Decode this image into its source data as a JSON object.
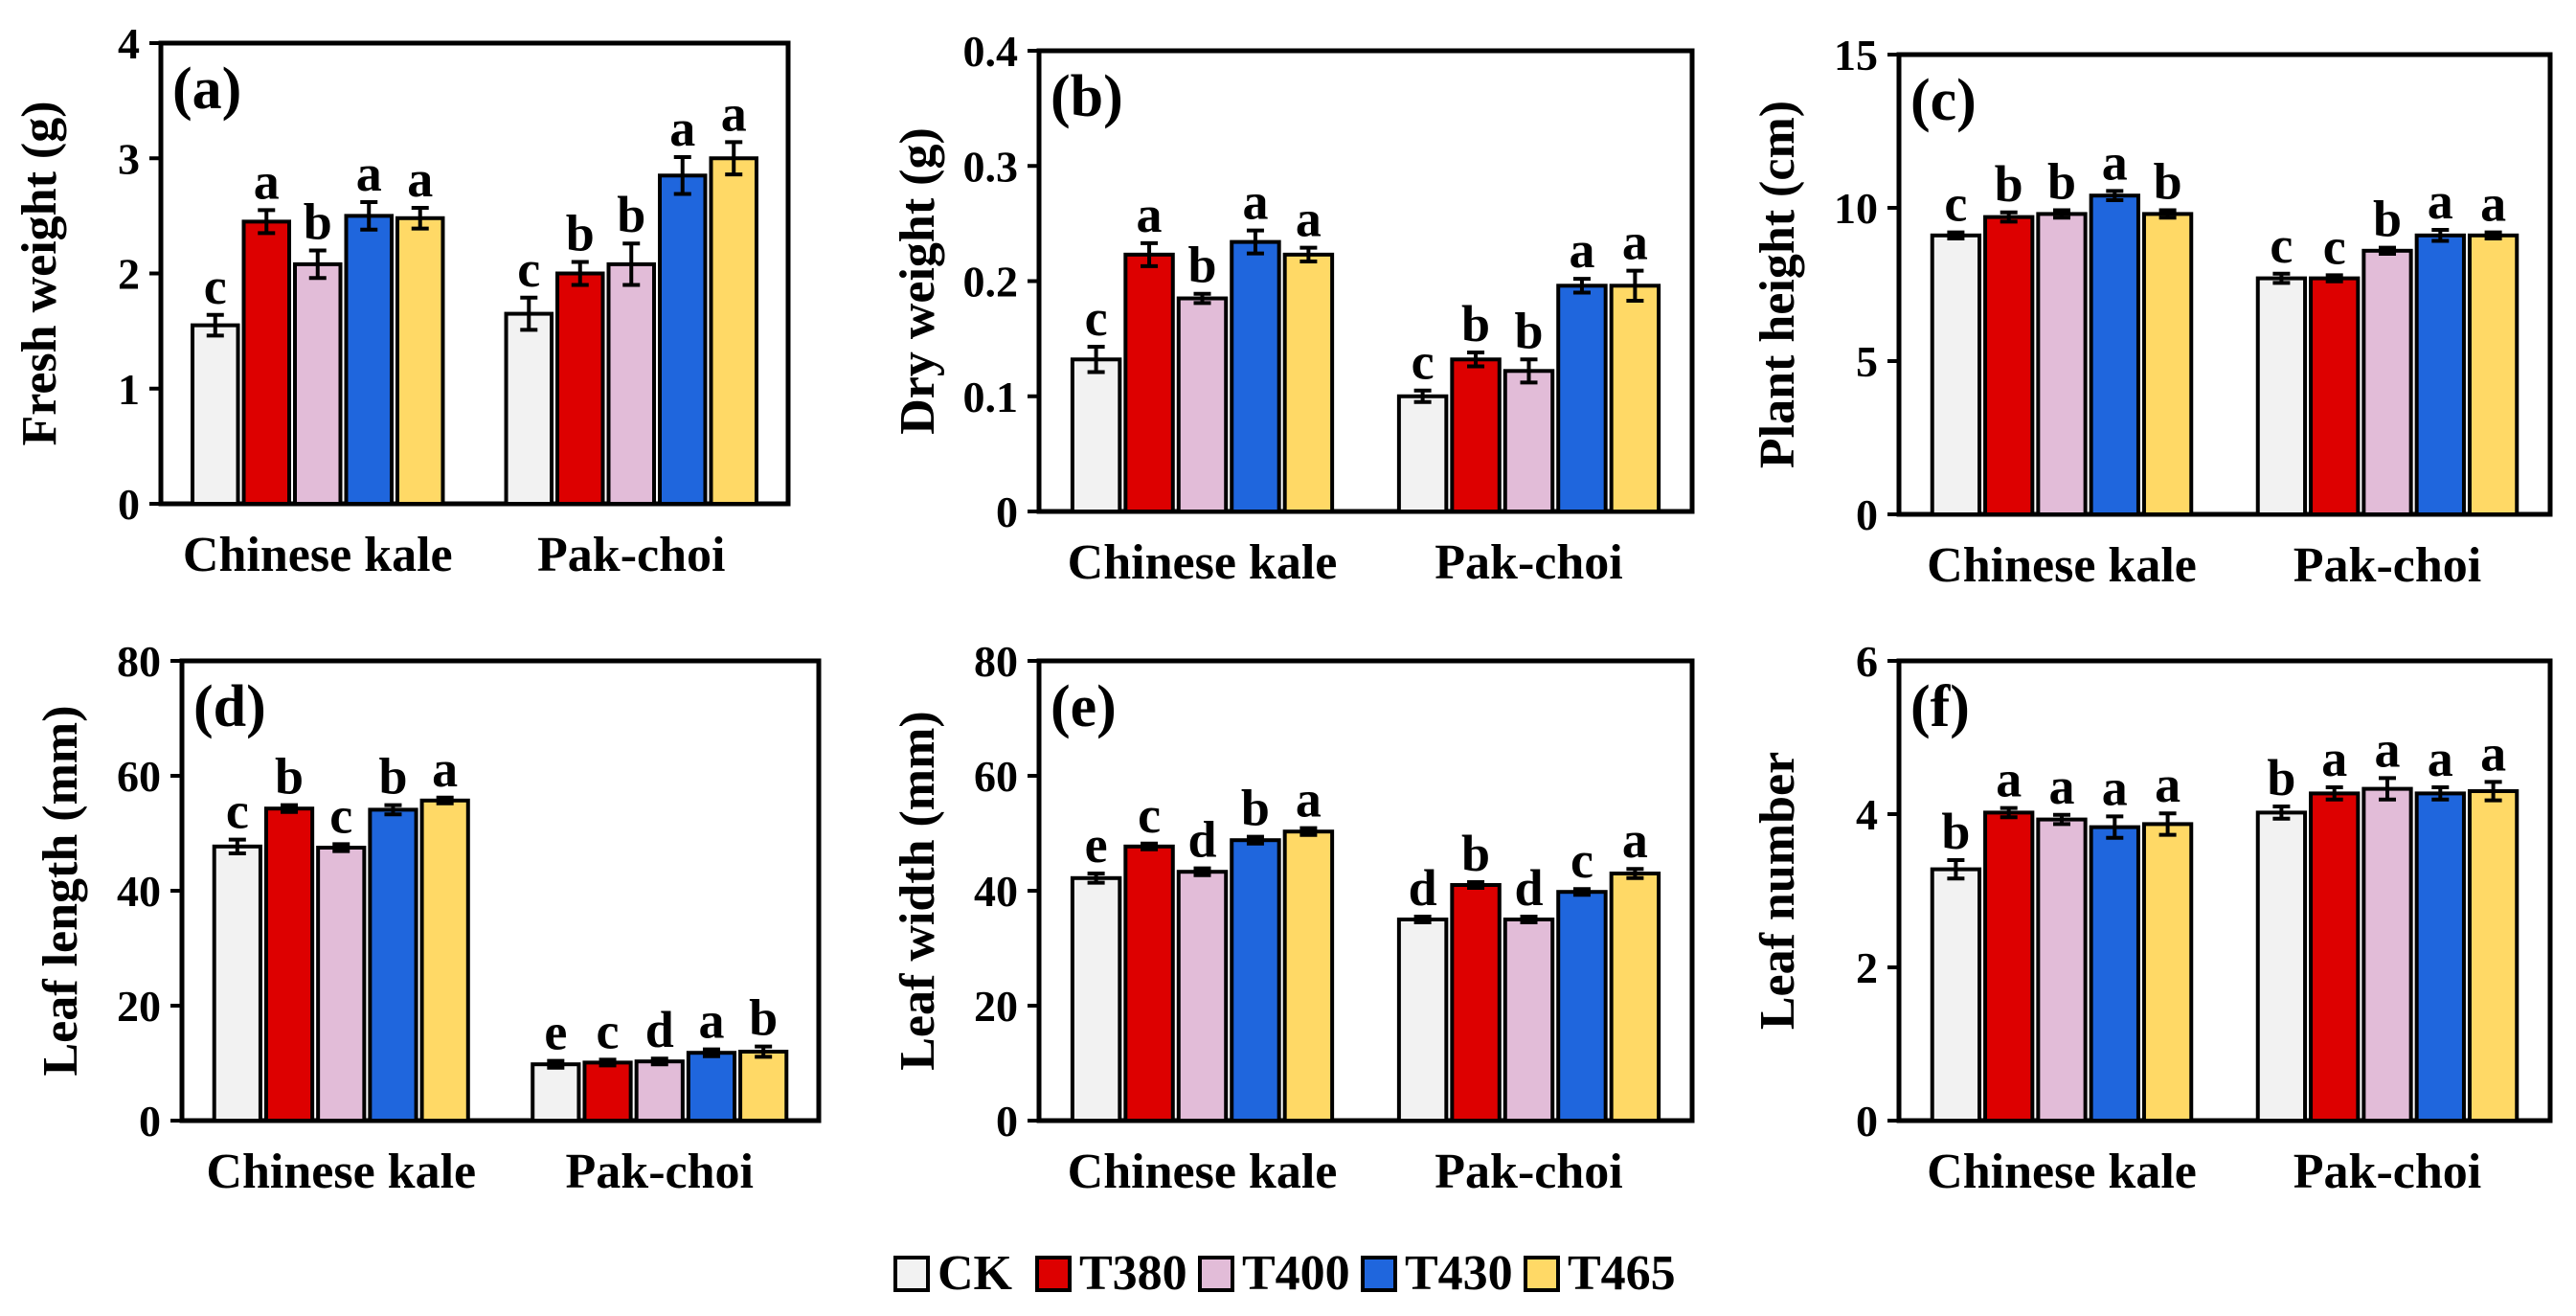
{
  "legend": [
    {
      "name": "CK",
      "color": "#f2f2f2"
    },
    {
      "name": "T380",
      "color": "#dd0000"
    },
    {
      "name": "T400",
      "color": "#e2bcd8"
    },
    {
      "name": "T430",
      "color": "#1f66dd"
    },
    {
      "name": "T465",
      "color": "#ffd966"
    }
  ],
  "chart_data": [
    {
      "type": "bar",
      "panel": "(a)",
      "ylabel": "Fresh weight (g)",
      "ylim": [
        0,
        4
      ],
      "yticks": [
        "0",
        "1",
        "2",
        "3",
        "4"
      ],
      "categories": [
        "Chinese kale",
        "Pak-choi"
      ],
      "series": [
        {
          "name": "CK",
          "values": [
            1.55,
            1.65
          ],
          "errors": [
            0.09,
            0.14
          ],
          "letters": [
            "c",
            "c"
          ]
        },
        {
          "name": "T380",
          "values": [
            2.45,
            2.0
          ],
          "errors": [
            0.1,
            0.1
          ],
          "letters": [
            "a",
            "b"
          ]
        },
        {
          "name": "T400",
          "values": [
            2.08,
            2.08
          ],
          "errors": [
            0.12,
            0.18
          ],
          "letters": [
            "b",
            "b"
          ]
        },
        {
          "name": "T430",
          "values": [
            2.5,
            2.85
          ],
          "errors": [
            0.12,
            0.16
          ],
          "letters": [
            "a",
            "a"
          ]
        },
        {
          "name": "T465",
          "values": [
            2.48,
            3.0
          ],
          "errors": [
            0.09,
            0.14
          ],
          "letters": [
            "a",
            "a"
          ]
        }
      ]
    },
    {
      "type": "bar",
      "panel": "(b)",
      "ylabel": "Dry weight (g)",
      "ylim": [
        0,
        0.4
      ],
      "yticks": [
        "0",
        "0.1",
        "0.2",
        "0.3",
        "0.4"
      ],
      "categories": [
        "Chinese kale",
        "Pak-choi"
      ],
      "series": [
        {
          "name": "CK",
          "values": [
            0.132,
            0.1
          ],
          "errors": [
            0.011,
            0.005
          ],
          "letters": [
            "c",
            "c"
          ]
        },
        {
          "name": "T380",
          "values": [
            0.223,
            0.132
          ],
          "errors": [
            0.01,
            0.006
          ],
          "letters": [
            "a",
            "b"
          ]
        },
        {
          "name": "T400",
          "values": [
            0.185,
            0.122
          ],
          "errors": [
            0.004,
            0.01
          ],
          "letters": [
            "b",
            "b"
          ]
        },
        {
          "name": "T430",
          "values": [
            0.234,
            0.196
          ],
          "errors": [
            0.01,
            0.006
          ],
          "letters": [
            "a",
            "a"
          ]
        },
        {
          "name": "T465",
          "values": [
            0.223,
            0.196
          ],
          "errors": [
            0.006,
            0.013
          ],
          "letters": [
            "a",
            "a"
          ]
        }
      ]
    },
    {
      "type": "bar",
      "panel": "(c)",
      "ylabel": "Plant height (cm)",
      "ylim": [
        0,
        15
      ],
      "yticks": [
        "0",
        "5",
        "10",
        "15"
      ],
      "categories": [
        "Chinese kale",
        "Pak-choi"
      ],
      "series": [
        {
          "name": "CK",
          "values": [
            9.1,
            7.7
          ],
          "errors": [
            0.1,
            0.15
          ],
          "letters": [
            "c",
            "c"
          ]
        },
        {
          "name": "T380",
          "values": [
            9.7,
            7.7
          ],
          "errors": [
            0.15,
            0.1
          ],
          "letters": [
            "b",
            "c"
          ]
        },
        {
          "name": "T400",
          "values": [
            9.8,
            8.6
          ],
          "errors": [
            0.12,
            0.1
          ],
          "letters": [
            "b",
            "b"
          ]
        },
        {
          "name": "T430",
          "values": [
            10.4,
            9.1
          ],
          "errors": [
            0.15,
            0.18
          ],
          "letters": [
            "a",
            "a"
          ]
        },
        {
          "name": "T465",
          "values": [
            9.8,
            9.1
          ],
          "errors": [
            0.12,
            0.1
          ],
          "letters": [
            "b",
            "a"
          ]
        }
      ]
    },
    {
      "type": "bar",
      "panel": "(d)",
      "ylabel": "Leaf length (mm)",
      "ylim": [
        0,
        80
      ],
      "yticks": [
        "0",
        "20",
        "40",
        "60",
        "80"
      ],
      "categories": [
        "Chinese kale",
        "Pak-choi"
      ],
      "series": [
        {
          "name": "CK",
          "values": [
            47.7,
            9.8
          ],
          "errors": [
            1.2,
            0.6
          ],
          "letters": [
            "c",
            "e"
          ]
        },
        {
          "name": "T380",
          "values": [
            54.3,
            10.1
          ],
          "errors": [
            0.6,
            0.5
          ],
          "letters": [
            "b",
            "c"
          ]
        },
        {
          "name": "T400",
          "values": [
            47.5,
            10.3
          ],
          "errors": [
            0.6,
            0.5
          ],
          "letters": [
            "c",
            "d"
          ]
        },
        {
          "name": "T430",
          "values": [
            54.1,
            11.8
          ],
          "errors": [
            0.8,
            0.6
          ],
          "letters": [
            "b",
            "a"
          ]
        },
        {
          "name": "T465",
          "values": [
            55.7,
            12.0
          ],
          "errors": [
            0.5,
            0.9
          ],
          "letters": [
            "a",
            "b"
          ]
        }
      ]
    },
    {
      "type": "bar",
      "panel": "(e)",
      "ylabel": "Leaf width (mm)",
      "ylim": [
        0,
        80
      ],
      "yticks": [
        "0",
        "20",
        "40",
        "60",
        "80"
      ],
      "categories": [
        "Chinese kale",
        "Pak-choi"
      ],
      "series": [
        {
          "name": "CK",
          "values": [
            42.2,
            35.0
          ],
          "errors": [
            0.8,
            0.5
          ],
          "letters": [
            "e",
            "d"
          ]
        },
        {
          "name": "T380",
          "values": [
            47.7,
            41.0
          ],
          "errors": [
            0.5,
            0.5
          ],
          "letters": [
            "c",
            "b"
          ]
        },
        {
          "name": "T400",
          "values": [
            43.3,
            35.0
          ],
          "errors": [
            0.6,
            0.5
          ],
          "letters": [
            "d",
            "d"
          ]
        },
        {
          "name": "T430",
          "values": [
            48.8,
            39.8
          ],
          "errors": [
            0.6,
            0.5
          ],
          "letters": [
            "b",
            "c"
          ]
        },
        {
          "name": "T465",
          "values": [
            50.3,
            43.0
          ],
          "errors": [
            0.6,
            0.8
          ],
          "letters": [
            "a",
            "a"
          ]
        }
      ]
    },
    {
      "type": "bar",
      "panel": "(f)",
      "ylabel": "Leaf number",
      "ylim": [
        0,
        6
      ],
      "yticks": [
        "0",
        "2",
        "4",
        "6"
      ],
      "categories": [
        "Chinese kale",
        "Pak-choi"
      ],
      "series": [
        {
          "name": "CK",
          "values": [
            3.28,
            4.02
          ],
          "errors": [
            0.12,
            0.08
          ],
          "letters": [
            "b",
            "b"
          ]
        },
        {
          "name": "T380",
          "values": [
            4.02,
            4.27
          ],
          "errors": [
            0.06,
            0.08
          ],
          "letters": [
            "a",
            "a"
          ]
        },
        {
          "name": "T400",
          "values": [
            3.93,
            4.33
          ],
          "errors": [
            0.06,
            0.14
          ],
          "letters": [
            "a",
            "a"
          ]
        },
        {
          "name": "T430",
          "values": [
            3.83,
            4.27
          ],
          "errors": [
            0.14,
            0.08
          ],
          "letters": [
            "a",
            "a"
          ]
        },
        {
          "name": "T465",
          "values": [
            3.87,
            4.3
          ],
          "errors": [
            0.14,
            0.12
          ],
          "letters": [
            "a",
            "a"
          ]
        }
      ]
    }
  ]
}
